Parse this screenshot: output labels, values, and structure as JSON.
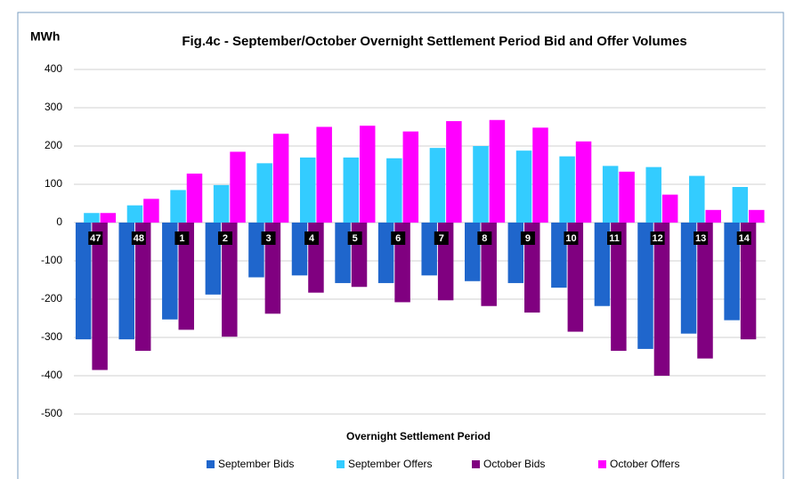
{
  "chart_data": {
    "type": "bar",
    "title": "Fig.4c - September/October Overnight Settlement Period Bid and Offer Volumes",
    "y_label": "MWh",
    "x_label": "Overnight Settlement Period",
    "categories": [
      "47",
      "48",
      "1",
      "2",
      "3",
      "4",
      "5",
      "6",
      "7",
      "8",
      "9",
      "10",
      "11",
      "12",
      "13",
      "14"
    ],
    "series": [
      {
        "name": "September Bids",
        "color": "#1f66cc",
        "values": [
          -305,
          -305,
          -253,
          -188,
          -143,
          -138,
          -158,
          -158,
          -138,
          -153,
          -158,
          -170,
          -218,
          -330,
          -290,
          -255
        ]
      },
      {
        "name": "September Offers",
        "color": "#33ccff",
        "values": [
          25,
          45,
          85,
          98,
          155,
          170,
          170,
          168,
          195,
          200,
          188,
          173,
          148,
          145,
          122,
          93
        ]
      },
      {
        "name": "October Bids",
        "color": "#800080",
        "values": [
          -385,
          -335,
          -280,
          -298,
          -238,
          -183,
          -168,
          -208,
          -203,
          -218,
          -235,
          -285,
          -335,
          -400,
          -355,
          -305
        ]
      },
      {
        "name": "October Offers",
        "color": "#ff00ff",
        "values": [
          25,
          62,
          128,
          185,
          232,
          250,
          253,
          238,
          265,
          268,
          248,
          212,
          133,
          73,
          33,
          33
        ]
      }
    ],
    "ylim": [
      -500,
      400
    ],
    "yticks": [
      -500,
      -400,
      -300,
      -200,
      -100,
      0,
      100,
      200,
      300,
      400
    ],
    "grid": true,
    "legend": "bottom"
  }
}
